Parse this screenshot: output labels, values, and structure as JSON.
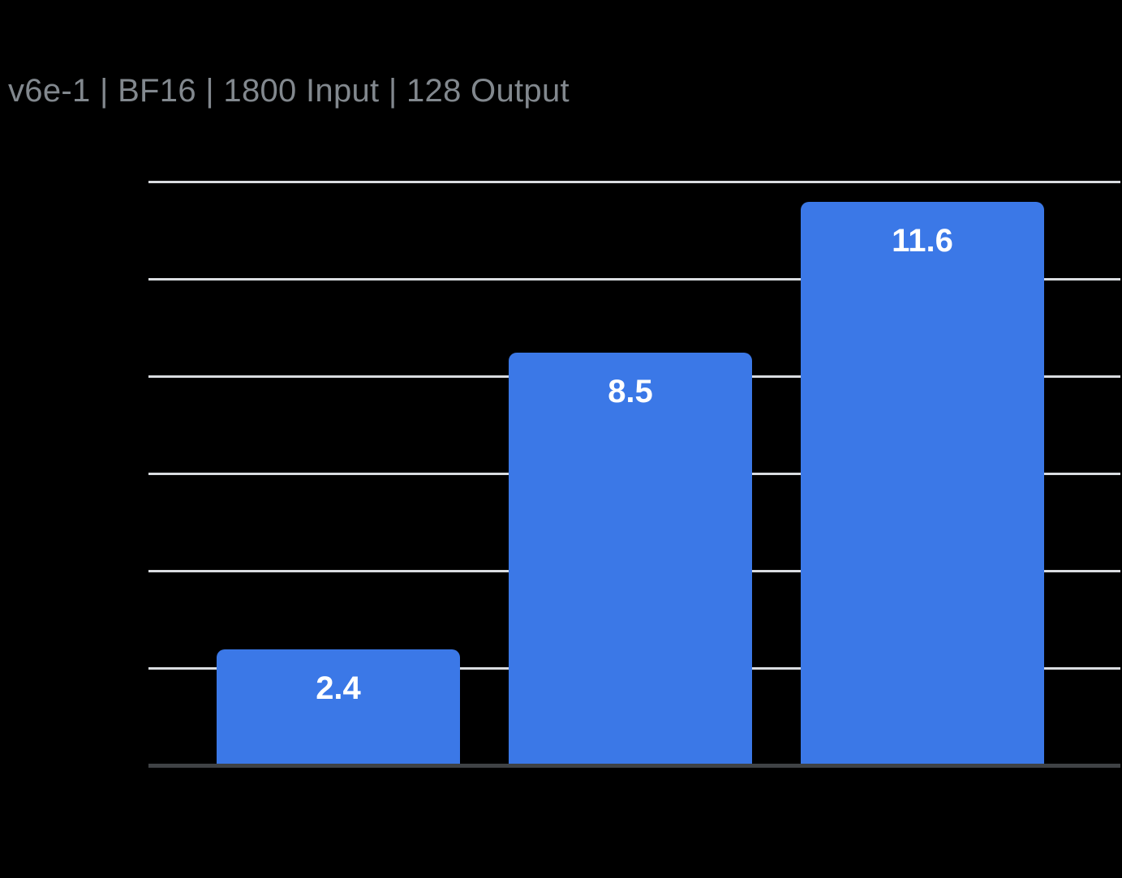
{
  "header": {
    "title": "v6e-1 | BF16 | 1800 Input | 128 Output"
  },
  "chart_data": {
    "type": "bar",
    "title": "v6e-1 | BF16 | 1800 Input | 128 Output",
    "categories": [
      "",
      "",
      ""
    ],
    "values": [
      2.4,
      8.5,
      11.6
    ],
    "value_labels": [
      "2.4",
      "8.5",
      "11.6"
    ],
    "xlabel": "",
    "ylabel": "",
    "ylim": [
      0,
      12
    ],
    "gridline_step": 2,
    "grid": true,
    "legend_position": "none",
    "axis_tick_labels_visible": false,
    "colors": {
      "bar": "#3B78E7",
      "value_label": "#FFFFFF",
      "gridline": "#D9DCE0",
      "axis_line": "#3F4245",
      "title_text": "#82888E",
      "background": "#000000"
    }
  }
}
